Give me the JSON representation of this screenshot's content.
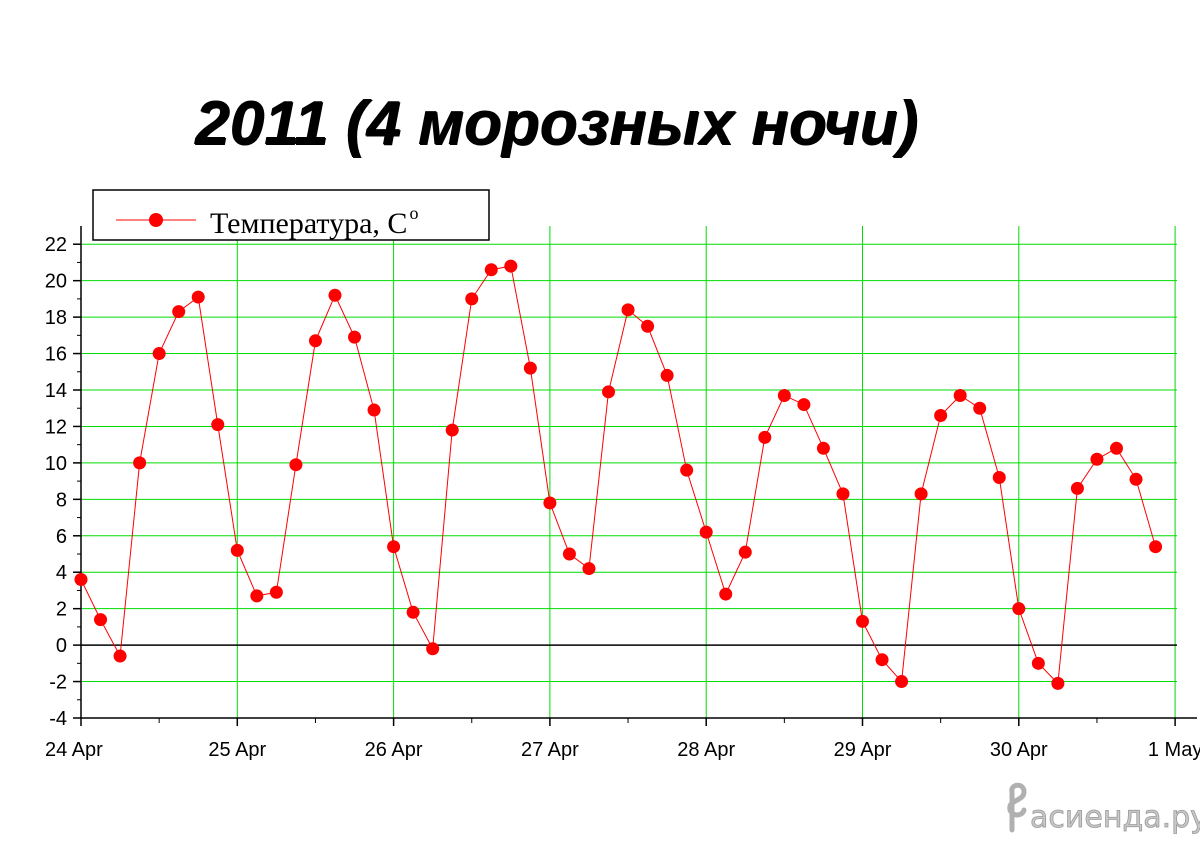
{
  "title": "2011 (4 морозных ночи)",
  "watermark": "асиенда.ру",
  "chart_data": {
    "type": "line",
    "title": "2011 (4 морозных ночи)",
    "xlabel": "",
    "ylabel": "",
    "ylim": [
      -4,
      23
    ],
    "yticks": [
      -4,
      -2,
      0,
      2,
      4,
      6,
      8,
      10,
      12,
      14,
      16,
      18,
      20,
      22
    ],
    "xtick_labels": [
      "24 Apr",
      "25 Apr",
      "26 Apr",
      "27 Apr",
      "28 Apr",
      "29 Apr",
      "30 Apr",
      "1 May"
    ],
    "x_unit": "days from 24 Apr 00:00, 3-hour steps",
    "grid": true,
    "legend": {
      "position": "top-left",
      "label": "Температура, C",
      "superscript": "o"
    },
    "colors": {
      "series": "#ff0000",
      "grid": "#00dd00",
      "zero_line": "#000000"
    },
    "series": [
      {
        "name": "Температура, Cᵒ",
        "values": [
          3.6,
          1.4,
          -0.6,
          10.0,
          16.0,
          18.3,
          19.1,
          12.1,
          5.2,
          2.7,
          2.9,
          9.9,
          16.7,
          19.2,
          16.9,
          12.9,
          5.4,
          1.8,
          -0.2,
          11.8,
          19.0,
          20.6,
          20.8,
          15.2,
          7.8,
          5.0,
          4.2,
          13.9,
          18.4,
          17.5,
          14.8,
          9.6,
          6.2,
          2.8,
          5.1,
          11.4,
          13.7,
          13.2,
          10.8,
          8.3,
          1.3,
          -0.8,
          -2.0,
          8.3,
          12.6,
          13.7,
          13.0,
          9.2,
          2.0,
          -1.0,
          -2.1,
          8.6,
          10.2,
          10.8,
          9.1,
          5.4
        ]
      }
    ]
  }
}
